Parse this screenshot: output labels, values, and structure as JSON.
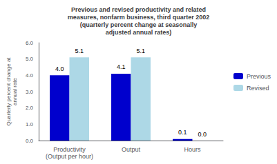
{
  "chart_data": {
    "type": "bar",
    "title": "Previous and revised productivity and related\nmeasures, nonfarm business, third quarter 2002\n(quarterly percent change at seasonally\nadjusted annual rates)",
    "categories": [
      "Productivity\n(Output per hour)",
      "Output",
      "Hours"
    ],
    "series": [
      {
        "name": "Previous",
        "color": "#0000CD",
        "values": [
          4.0,
          4.1,
          0.1
        ],
        "value_labels": [
          "4.0",
          "4.1",
          "0.1"
        ]
      },
      {
        "name": "Revised",
        "color": "#ADD8E6",
        "values": [
          5.1,
          5.1,
          0.0
        ],
        "value_labels": [
          "5.1",
          "5.1",
          "0.0"
        ]
      }
    ],
    "ylabel": "Quarterly percent change at\nannual rate",
    "ylim": [
      0,
      6.0
    ],
    "yticks": [
      {
        "value": 0.0,
        "label": "0.0"
      },
      {
        "value": 1.0,
        "label": "1.0"
      },
      {
        "value": 2.0,
        "label": "2.0"
      },
      {
        "value": 3.0,
        "label": "3.0"
      },
      {
        "value": 4.0,
        "label": "4.0"
      },
      {
        "value": 5.0,
        "label": "5.0"
      },
      {
        "value": 6.0,
        "label": "6.0"
      }
    ],
    "grid": false,
    "legend": "right",
    "data_labels": true
  }
}
